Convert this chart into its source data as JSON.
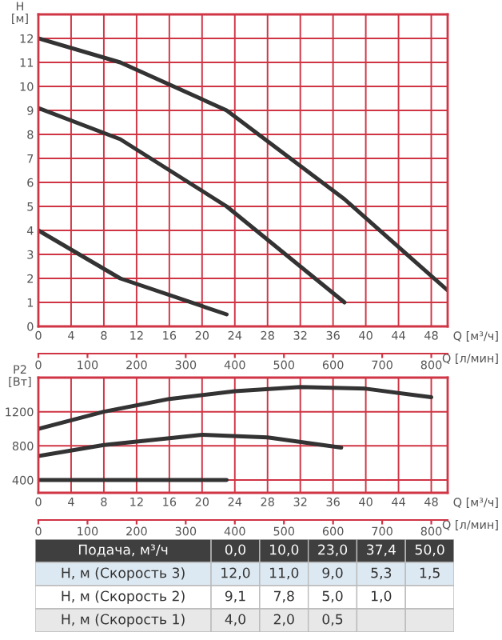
{
  "chart_data": [
    {
      "type": "line",
      "ylabel": "H [м]",
      "xlabel": "Q [м³/ч]",
      "x2label": "Q [л/мин]",
      "x": [
        0,
        10,
        23,
        37.4,
        50
      ],
      "xlim": [
        0,
        50
      ],
      "xticks": [
        0,
        4,
        8,
        12,
        16,
        20,
        24,
        28,
        32,
        36,
        40,
        44,
        48
      ],
      "x2lim": [
        0,
        833.3
      ],
      "x2ticks": [
        0,
        100,
        200,
        300,
        400,
        500,
        600,
        700,
        800
      ],
      "ylim": [
        0,
        13
      ],
      "yticks": [
        0,
        1,
        2,
        3,
        4,
        5,
        6,
        7,
        8,
        9,
        10,
        11,
        12
      ],
      "grid": true,
      "legend": false,
      "series": [
        {
          "color": "#333333",
          "values": [
            12.0,
            11.0,
            9.0,
            5.3,
            1.5
          ]
        },
        {
          "color": "#333333",
          "values": [
            9.1,
            7.8,
            5.0,
            1.0,
            null
          ]
        },
        {
          "color": "#333333",
          "values": [
            4.0,
            2.0,
            0.5,
            null,
            null
          ]
        }
      ]
    },
    {
      "type": "line",
      "ylabel": "P2 [Вт]",
      "xlabel": "Q [м³/ч]",
      "x2label": "Q [л/мин]",
      "xlim": [
        0,
        50
      ],
      "xticks": [
        0,
        4,
        8,
        12,
        16,
        20,
        24,
        28,
        32,
        36,
        40,
        44,
        48
      ],
      "x2lim": [
        0,
        833.3
      ],
      "x2ticks": [
        0,
        100,
        200,
        300,
        400,
        500,
        600,
        700,
        800
      ],
      "ylim": [
        250,
        1600
      ],
      "yticks": [
        400,
        800,
        1200
      ],
      "grid": true,
      "legend": false,
      "series": [
        {
          "color": "#333333",
          "x": [
            0,
            8,
            16,
            24,
            32,
            40,
            48
          ],
          "values": [
            1000,
            1200,
            1350,
            1440,
            1490,
            1470,
            1370
          ]
        },
        {
          "color": "#333333",
          "x": [
            0,
            8,
            20,
            28,
            37
          ],
          "values": [
            680,
            810,
            930,
            900,
            780
          ]
        },
        {
          "color": "#333333",
          "x": [
            0,
            23
          ],
          "values": [
            400,
            400
          ]
        }
      ]
    },
    {
      "type": "heatmap",
      "xlabel": "Подача, м³/ч",
      "categories": [
        "0,0",
        "10,0",
        "23,0",
        "37,4",
        "50,0"
      ],
      "y_categories": [
        "H, м (Скорость 3)",
        "H, м (Скорость 2)",
        "H, м (Скорость 1)"
      ],
      "cells": [
        [
          12.0,
          11.0,
          9.0,
          5.3,
          1.5
        ],
        [
          9.1,
          7.8,
          5.0,
          1.0,
          null
        ],
        [
          4.0,
          2.0,
          0.5,
          null,
          null
        ]
      ],
      "cell_labels": [
        [
          "12,0",
          "11,0",
          "9,0",
          "5,3",
          "1,5"
        ],
        [
          "9,1",
          "7,8",
          "5,0",
          "1,0",
          null
        ],
        [
          "4,0",
          "2,0",
          "0,5",
          null,
          null
        ]
      ],
      "colors": [
        "#3f3f3f",
        "#dde9f2",
        "#ffffff",
        "#e8e8e8"
      ]
    }
  ]
}
